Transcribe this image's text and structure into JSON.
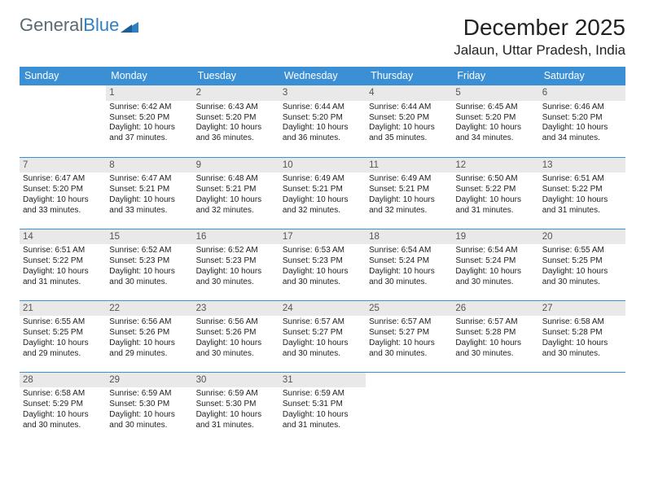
{
  "logo": {
    "part1": "General",
    "part2": "Blue"
  },
  "title": "December 2025",
  "location": "Jalaun, Uttar Pradesh, India",
  "colors": {
    "header_bg": "#3b8fd4",
    "header_text": "#ffffff",
    "daynum_bg": "#e9e9e9",
    "daynum_text": "#555555",
    "cell_border": "#3b8fd4",
    "logo_gray": "#5a6a72",
    "logo_blue": "#2f7fc2"
  },
  "weekdays": [
    "Sunday",
    "Monday",
    "Tuesday",
    "Wednesday",
    "Thursday",
    "Friday",
    "Saturday"
  ],
  "weeks": [
    [
      {
        "n": "",
        "sr": "",
        "ss": "",
        "dl": ""
      },
      {
        "n": "1",
        "sr": "Sunrise: 6:42 AM",
        "ss": "Sunset: 5:20 PM",
        "dl": "Daylight: 10 hours and 37 minutes."
      },
      {
        "n": "2",
        "sr": "Sunrise: 6:43 AM",
        "ss": "Sunset: 5:20 PM",
        "dl": "Daylight: 10 hours and 36 minutes."
      },
      {
        "n": "3",
        "sr": "Sunrise: 6:44 AM",
        "ss": "Sunset: 5:20 PM",
        "dl": "Daylight: 10 hours and 36 minutes."
      },
      {
        "n": "4",
        "sr": "Sunrise: 6:44 AM",
        "ss": "Sunset: 5:20 PM",
        "dl": "Daylight: 10 hours and 35 minutes."
      },
      {
        "n": "5",
        "sr": "Sunrise: 6:45 AM",
        "ss": "Sunset: 5:20 PM",
        "dl": "Daylight: 10 hours and 34 minutes."
      },
      {
        "n": "6",
        "sr": "Sunrise: 6:46 AM",
        "ss": "Sunset: 5:20 PM",
        "dl": "Daylight: 10 hours and 34 minutes."
      }
    ],
    [
      {
        "n": "7",
        "sr": "Sunrise: 6:47 AM",
        "ss": "Sunset: 5:20 PM",
        "dl": "Daylight: 10 hours and 33 minutes."
      },
      {
        "n": "8",
        "sr": "Sunrise: 6:47 AM",
        "ss": "Sunset: 5:21 PM",
        "dl": "Daylight: 10 hours and 33 minutes."
      },
      {
        "n": "9",
        "sr": "Sunrise: 6:48 AM",
        "ss": "Sunset: 5:21 PM",
        "dl": "Daylight: 10 hours and 32 minutes."
      },
      {
        "n": "10",
        "sr": "Sunrise: 6:49 AM",
        "ss": "Sunset: 5:21 PM",
        "dl": "Daylight: 10 hours and 32 minutes."
      },
      {
        "n": "11",
        "sr": "Sunrise: 6:49 AM",
        "ss": "Sunset: 5:21 PM",
        "dl": "Daylight: 10 hours and 32 minutes."
      },
      {
        "n": "12",
        "sr": "Sunrise: 6:50 AM",
        "ss": "Sunset: 5:22 PM",
        "dl": "Daylight: 10 hours and 31 minutes."
      },
      {
        "n": "13",
        "sr": "Sunrise: 6:51 AM",
        "ss": "Sunset: 5:22 PM",
        "dl": "Daylight: 10 hours and 31 minutes."
      }
    ],
    [
      {
        "n": "14",
        "sr": "Sunrise: 6:51 AM",
        "ss": "Sunset: 5:22 PM",
        "dl": "Daylight: 10 hours and 31 minutes."
      },
      {
        "n": "15",
        "sr": "Sunrise: 6:52 AM",
        "ss": "Sunset: 5:23 PM",
        "dl": "Daylight: 10 hours and 30 minutes."
      },
      {
        "n": "16",
        "sr": "Sunrise: 6:52 AM",
        "ss": "Sunset: 5:23 PM",
        "dl": "Daylight: 10 hours and 30 minutes."
      },
      {
        "n": "17",
        "sr": "Sunrise: 6:53 AM",
        "ss": "Sunset: 5:23 PM",
        "dl": "Daylight: 10 hours and 30 minutes."
      },
      {
        "n": "18",
        "sr": "Sunrise: 6:54 AM",
        "ss": "Sunset: 5:24 PM",
        "dl": "Daylight: 10 hours and 30 minutes."
      },
      {
        "n": "19",
        "sr": "Sunrise: 6:54 AM",
        "ss": "Sunset: 5:24 PM",
        "dl": "Daylight: 10 hours and 30 minutes."
      },
      {
        "n": "20",
        "sr": "Sunrise: 6:55 AM",
        "ss": "Sunset: 5:25 PM",
        "dl": "Daylight: 10 hours and 30 minutes."
      }
    ],
    [
      {
        "n": "21",
        "sr": "Sunrise: 6:55 AM",
        "ss": "Sunset: 5:25 PM",
        "dl": "Daylight: 10 hours and 29 minutes."
      },
      {
        "n": "22",
        "sr": "Sunrise: 6:56 AM",
        "ss": "Sunset: 5:26 PM",
        "dl": "Daylight: 10 hours and 29 minutes."
      },
      {
        "n": "23",
        "sr": "Sunrise: 6:56 AM",
        "ss": "Sunset: 5:26 PM",
        "dl": "Daylight: 10 hours and 30 minutes."
      },
      {
        "n": "24",
        "sr": "Sunrise: 6:57 AM",
        "ss": "Sunset: 5:27 PM",
        "dl": "Daylight: 10 hours and 30 minutes."
      },
      {
        "n": "25",
        "sr": "Sunrise: 6:57 AM",
        "ss": "Sunset: 5:27 PM",
        "dl": "Daylight: 10 hours and 30 minutes."
      },
      {
        "n": "26",
        "sr": "Sunrise: 6:57 AM",
        "ss": "Sunset: 5:28 PM",
        "dl": "Daylight: 10 hours and 30 minutes."
      },
      {
        "n": "27",
        "sr": "Sunrise: 6:58 AM",
        "ss": "Sunset: 5:28 PM",
        "dl": "Daylight: 10 hours and 30 minutes."
      }
    ],
    [
      {
        "n": "28",
        "sr": "Sunrise: 6:58 AM",
        "ss": "Sunset: 5:29 PM",
        "dl": "Daylight: 10 hours and 30 minutes."
      },
      {
        "n": "29",
        "sr": "Sunrise: 6:59 AM",
        "ss": "Sunset: 5:30 PM",
        "dl": "Daylight: 10 hours and 30 minutes."
      },
      {
        "n": "30",
        "sr": "Sunrise: 6:59 AM",
        "ss": "Sunset: 5:30 PM",
        "dl": "Daylight: 10 hours and 31 minutes."
      },
      {
        "n": "31",
        "sr": "Sunrise: 6:59 AM",
        "ss": "Sunset: 5:31 PM",
        "dl": "Daylight: 10 hours and 31 minutes."
      },
      {
        "n": "",
        "sr": "",
        "ss": "",
        "dl": ""
      },
      {
        "n": "",
        "sr": "",
        "ss": "",
        "dl": ""
      },
      {
        "n": "",
        "sr": "",
        "ss": "",
        "dl": ""
      }
    ]
  ]
}
